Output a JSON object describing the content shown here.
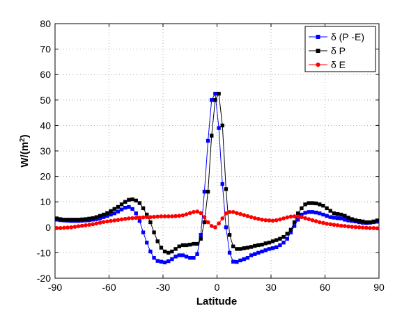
{
  "chart_data": {
    "type": "line",
    "title": "",
    "xlabel": "Latitude",
    "ylabel": "W/(m2)",
    "ylabel_base": "W/(m",
    "ylabel_sup": "2",
    "ylabel_tail": ")",
    "xlim": [
      -90,
      90
    ],
    "ylim": [
      -20,
      80
    ],
    "xticks": [
      -90,
      -60,
      -30,
      0,
      30,
      60,
      90
    ],
    "yticks": [
      -20,
      -10,
      0,
      10,
      20,
      30,
      40,
      50,
      60,
      70,
      80
    ],
    "grid": true,
    "legend_position": "top-right",
    "series": [
      {
        "name": "δ (P -E)",
        "color": "#0000ff",
        "marker": "square",
        "x": [
          -89,
          -87,
          -85,
          -83,
          -81,
          -79,
          -77,
          -75,
          -73,
          -71,
          -69,
          -67,
          -65,
          -63,
          -61,
          -59,
          -57,
          -55,
          -53,
          -51,
          -49,
          -47,
          -45,
          -43,
          -41,
          -39,
          -37,
          -35,
          -33,
          -31,
          -29,
          -27,
          -25,
          -23,
          -21,
          -19,
          -17,
          -15,
          -13,
          -11,
          -9,
          -7,
          -5,
          -3,
          -1,
          1,
          3,
          5,
          7,
          9,
          11,
          13,
          15,
          17,
          19,
          21,
          23,
          25,
          27,
          29,
          31,
          33,
          35,
          37,
          39,
          41,
          43,
          45,
          47,
          49,
          51,
          53,
          55,
          57,
          59,
          61,
          63,
          65,
          67,
          69,
          71,
          73,
          75,
          77,
          79,
          81,
          83,
          85,
          87,
          89
        ],
        "values": [
          3,
          2.8,
          2.7,
          2.6,
          2.5,
          2.5,
          2.5,
          2.6,
          2.7,
          2.8,
          3,
          3.2,
          3.5,
          4,
          4.5,
          5,
          5.5,
          6.2,
          7,
          7.7,
          8,
          7.2,
          5.5,
          2.5,
          -2,
          -6,
          -9.5,
          -12,
          -13.2,
          -13.5,
          -13.8,
          -13.3,
          -12.5,
          -11.5,
          -11,
          -11,
          -11.5,
          -12,
          -12,
          -10.5,
          -3,
          14,
          34,
          50,
          52.5,
          39,
          17,
          0,
          -10,
          -13.5,
          -13.6,
          -13,
          -12.5,
          -12,
          -11,
          -10.5,
          -10,
          -9.5,
          -9,
          -8.5,
          -8.2,
          -7.8,
          -7,
          -6,
          -4.5,
          -2,
          0.5,
          3,
          5,
          5.7,
          6,
          6,
          5.8,
          5.5,
          5,
          4.5,
          4,
          3.8,
          3.6,
          3.5,
          3,
          2.7,
          2.5,
          2.3,
          2,
          1.8,
          1.7,
          1.8,
          2,
          2.2
        ]
      },
      {
        "name": "δ P",
        "color": "#000000",
        "marker": "square",
        "x": [
          -89,
          -87,
          -85,
          -83,
          -81,
          -79,
          -77,
          -75,
          -73,
          -71,
          -69,
          -67,
          -65,
          -63,
          -61,
          -59,
          -57,
          -55,
          -53,
          -51,
          -49,
          -47,
          -45,
          -43,
          -41,
          -39,
          -37,
          -35,
          -33,
          -31,
          -29,
          -27,
          -25,
          -23,
          -21,
          -19,
          -17,
          -15,
          -13,
          -11,
          -9,
          -7,
          -5,
          -3,
          -1,
          1,
          3,
          5,
          7,
          9,
          11,
          13,
          15,
          17,
          19,
          21,
          23,
          25,
          27,
          29,
          31,
          33,
          35,
          37,
          39,
          41,
          43,
          45,
          47,
          49,
          51,
          53,
          55,
          57,
          59,
          61,
          63,
          65,
          67,
          69,
          71,
          73,
          75,
          77,
          79,
          81,
          83,
          85,
          87,
          89
        ],
        "values": [
          3.5,
          3.2,
          3,
          3,
          3,
          3,
          3,
          3.1,
          3.2,
          3.4,
          3.6,
          4,
          4.5,
          5,
          5.6,
          6.4,
          7.2,
          8,
          9,
          10,
          10.8,
          11,
          10.5,
          9.5,
          7.5,
          5,
          2,
          -2,
          -5.5,
          -8,
          -9.5,
          -10,
          -9.5,
          -8.5,
          -7.5,
          -7,
          -7,
          -6.8,
          -6.5,
          -6.5,
          -4.5,
          2,
          14,
          36,
          50,
          52.5,
          40,
          15,
          -3,
          -7.5,
          -8.5,
          -8.5,
          -8.2,
          -8,
          -7.7,
          -7.3,
          -7,
          -6.8,
          -6.3,
          -6,
          -5.5,
          -5,
          -4.5,
          -3.8,
          -2.5,
          -1,
          2,
          5.5,
          7.5,
          9,
          9.5,
          9.5,
          9.4,
          9,
          8.5,
          7.5,
          6.5,
          5.5,
          5.2,
          5,
          4.5,
          3.8,
          3.2,
          2.8,
          2.5,
          2.3,
          2,
          2,
          2.3,
          2.7
        ]
      },
      {
        "name": "δ E",
        "color": "#ff0000",
        "marker": "circle",
        "x": [
          -89,
          -87,
          -85,
          -83,
          -81,
          -79,
          -77,
          -75,
          -73,
          -71,
          -69,
          -67,
          -65,
          -63,
          -61,
          -59,
          -57,
          -55,
          -53,
          -51,
          -49,
          -47,
          -45,
          -43,
          -41,
          -39,
          -37,
          -35,
          -33,
          -31,
          -29,
          -27,
          -25,
          -23,
          -21,
          -19,
          -17,
          -15,
          -13,
          -11,
          -9,
          -7,
          -5,
          -3,
          -1,
          1,
          3,
          5,
          7,
          9,
          11,
          13,
          15,
          17,
          19,
          21,
          23,
          25,
          27,
          29,
          31,
          33,
          35,
          37,
          39,
          41,
          43,
          45,
          47,
          49,
          51,
          53,
          55,
          57,
          59,
          61,
          63,
          65,
          67,
          69,
          71,
          73,
          75,
          77,
          79,
          81,
          83,
          85,
          87,
          89
        ],
        "values": [
          -0.3,
          -0.3,
          -0.2,
          -0.1,
          0,
          0.2,
          0.4,
          0.6,
          0.8,
          1,
          1.2,
          1.5,
          1.8,
          2.1,
          2.3,
          2.5,
          2.7,
          2.9,
          3.1,
          3.3,
          3.5,
          3.6,
          3.7,
          3.8,
          3.9,
          4,
          4,
          4.1,
          4.2,
          4.3,
          4.3,
          4.3,
          4.3,
          4.4,
          4.5,
          4.7,
          5.1,
          5.6,
          6,
          6.2,
          5.6,
          4,
          2,
          0.5,
          0,
          1.5,
          3.5,
          5.5,
          6,
          6,
          5.6,
          5.2,
          4.8,
          4.4,
          4,
          3.6,
          3.3,
          3,
          2.8,
          2.7,
          2.6,
          2.8,
          3.1,
          3.5,
          3.9,
          4.2,
          4.3,
          4.2,
          4,
          3.6,
          3.2,
          2.8,
          2.4,
          2,
          1.7,
          1.4,
          1.2,
          1,
          0.8,
          0.6,
          0.5,
          0.3,
          0.2,
          0.1,
          0,
          -0.1,
          -0.2,
          -0.3,
          -0.3,
          -0.4
        ]
      }
    ]
  }
}
